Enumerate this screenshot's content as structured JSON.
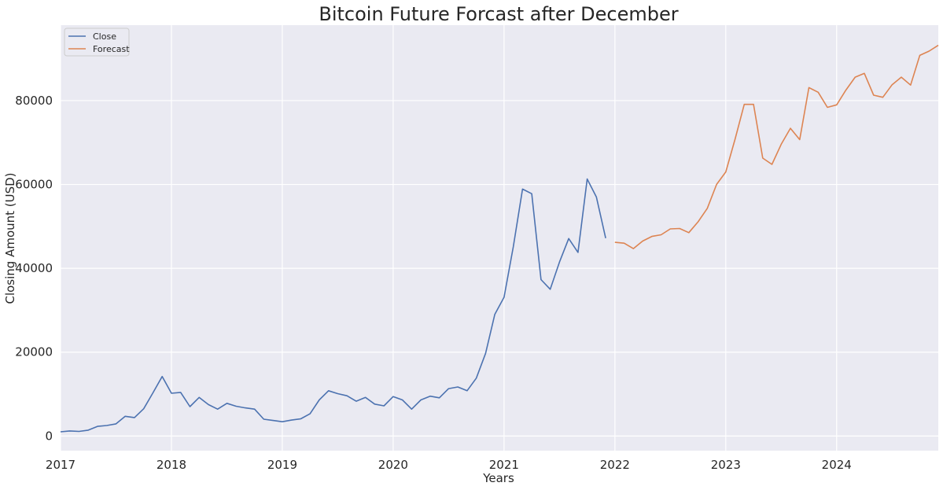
{
  "chart_data": {
    "type": "line",
    "title": "Bitcoin Future Forcast after December",
    "xlabel": "Years",
    "ylabel": "Closing Amount (USD)",
    "xlim": [
      "2017-01-01",
      "2024-12-01"
    ],
    "ylim": [
      -3500,
      98000
    ],
    "x_ticks": [
      "2017",
      "2018",
      "2019",
      "2020",
      "2021",
      "2022",
      "2023",
      "2024"
    ],
    "y_ticks": [
      0,
      20000,
      40000,
      60000,
      80000
    ],
    "grid": true,
    "legend_position": "top-left",
    "series": [
      {
        "name": "Close",
        "color": "#4c72b0",
        "x": [
          "2017-01",
          "2017-02",
          "2017-03",
          "2017-04",
          "2017-05",
          "2017-06",
          "2017-07",
          "2017-08",
          "2017-09",
          "2017-10",
          "2017-11",
          "2017-12",
          "2018-01",
          "2018-02",
          "2018-03",
          "2018-04",
          "2018-05",
          "2018-06",
          "2018-07",
          "2018-08",
          "2018-09",
          "2018-10",
          "2018-11",
          "2018-12",
          "2019-01",
          "2019-02",
          "2019-03",
          "2019-04",
          "2019-05",
          "2019-06",
          "2019-07",
          "2019-08",
          "2019-09",
          "2019-10",
          "2019-11",
          "2019-12",
          "2020-01",
          "2020-02",
          "2020-03",
          "2020-04",
          "2020-05",
          "2020-06",
          "2020-07",
          "2020-08",
          "2020-09",
          "2020-10",
          "2020-11",
          "2020-12",
          "2021-01",
          "2021-02",
          "2021-03",
          "2021-04",
          "2021-05",
          "2021-06",
          "2021-07",
          "2021-08",
          "2021-09",
          "2021-10",
          "2021-11",
          "2021-12"
        ],
        "values": [
          1000,
          1200,
          1100,
          1400,
          2300,
          2500,
          2900,
          4700,
          4400,
          6500,
          10300,
          14200,
          10200,
          10400,
          7000,
          9200,
          7500,
          6400,
          7800,
          7100,
          6700,
          6400,
          4000,
          3700,
          3400,
          3800,
          4100,
          5300,
          8600,
          10800,
          10100,
          9600,
          8300,
          9200,
          7600,
          7200,
          9400,
          8600,
          6400,
          8600,
          9500,
          9100,
          11300,
          11700,
          10800,
          13800,
          19700,
          29000,
          33100,
          45100,
          58900,
          57800,
          37300,
          35000,
          41500,
          47100,
          43800,
          61300,
          57000,
          47200
        ]
      },
      {
        "name": "Forecast",
        "color": "#dd8452",
        "x": [
          "2022-01",
          "2022-02",
          "2022-03",
          "2022-04",
          "2022-05",
          "2022-06",
          "2022-07",
          "2022-08",
          "2022-09",
          "2022-10",
          "2022-11",
          "2022-12",
          "2023-01",
          "2023-02",
          "2023-03",
          "2023-04",
          "2023-05",
          "2023-06",
          "2023-07",
          "2023-08",
          "2023-09",
          "2023-10",
          "2023-11",
          "2023-12",
          "2024-01",
          "2024-02",
          "2024-03",
          "2024-04",
          "2024-05",
          "2024-06",
          "2024-07",
          "2024-08",
          "2024-09",
          "2024-10",
          "2024-11",
          "2024-12"
        ],
        "values": [
          46200,
          46000,
          44700,
          46500,
          47600,
          48000,
          49400,
          49500,
          48500,
          51100,
          54300,
          60000,
          63000,
          70800,
          79100,
          79100,
          66300,
          64800,
          69600,
          73400,
          70700,
          83100,
          82000,
          78400,
          79000,
          82500,
          85600,
          86500,
          81300,
          80800,
          83800,
          85600,
          83700,
          90800,
          91800,
          93200
        ]
      }
    ]
  }
}
